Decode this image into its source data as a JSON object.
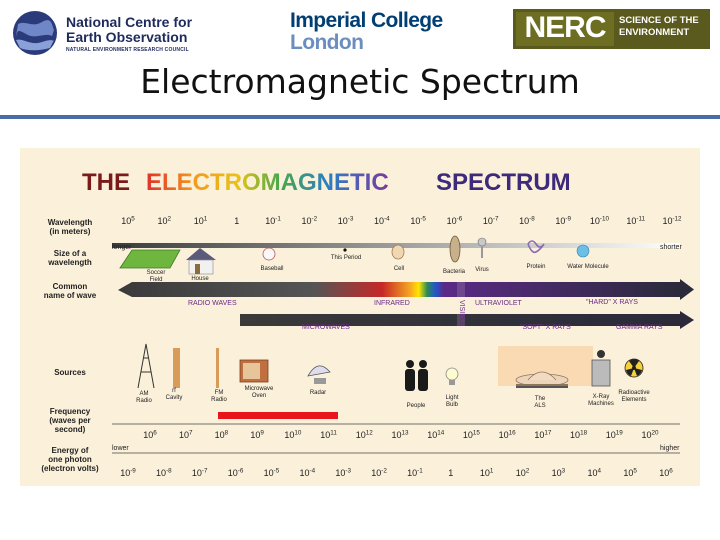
{
  "header": {
    "nceo_line1": "National Centre for",
    "nceo_line2": "Earth Observation",
    "nceo_line3": "NATURAL ENVIRONMENT RESEARCH COUNCIL",
    "imperial_line1": "Imperial College",
    "imperial_line2": "London",
    "nerc_word": "NERC",
    "nerc_tagline": "SCIENCE OF THE ENVIRONMENT",
    "colors": {
      "nceo": "#1f2a5c",
      "imperial_dark": "#003e74",
      "imperial_light": "#6c8ebf",
      "nerc_olive": "#5a5a1e"
    }
  },
  "slide": {
    "title": "Electromagnetic Spectrum",
    "rule_color": "#4a6da7"
  },
  "diagram": {
    "title_the": "THE",
    "title_electromagnetic": "ELECTROMAGNETIC",
    "title_spectrum": "SPECTRUM",
    "row_labels": {
      "wavelength": [
        "Wavelength",
        "(in meters)"
      ],
      "size": [
        "Size of a",
        "wavelength"
      ],
      "common": [
        "Common",
        "name of wave"
      ],
      "sources": [
        "Sources"
      ],
      "frequency": [
        "Frequency",
        "(waves per",
        "second)"
      ],
      "energy": [
        "Energy of",
        "one photon",
        "(electron volts)"
      ]
    },
    "wavelength_ticks": [
      "10^5",
      "10^2",
      "10^1",
      "1",
      "10^-1",
      "10^-2",
      "10^-3",
      "10^-4",
      "10^-5",
      "10^-6",
      "10^-7",
      "10^-8",
      "10^-9",
      "10^-10",
      "10^-11",
      "10^-12"
    ],
    "size_ends": {
      "left": "longer",
      "right": "shorter"
    },
    "size_items": [
      "Soccer Field",
      "House",
      "Baseball",
      "This Period",
      "Cell",
      "Bacteria",
      "Virus",
      "Protein",
      "Water Molecule"
    ],
    "wave_names": {
      "radio": "RADIO WAVES",
      "infrared": "INFRARED",
      "visible": "VISIBLE",
      "ultraviolet": "ULTRAVIOLET",
      "hard_xrays": "\"HARD\" X RAYS",
      "microwaves": "MICROWAVES",
      "soft_xrays": "\"SOFT\" X RAYS",
      "gamma": "GAMMA RAYS"
    },
    "sources": [
      "AM Radio",
      "rf Cavity",
      "FM Radio",
      "Microwave Oven",
      "Radar",
      "People",
      "Light Bulb",
      "The ALS",
      "X-Ray Machines",
      "Radioactive Elements"
    ],
    "frequency_ticks": [
      "10^6",
      "10^7",
      "10^8",
      "10^9",
      "10^10",
      "10^11",
      "10^12",
      "10^13",
      "10^14",
      "10^15",
      "10^16",
      "10^17",
      "10^18",
      "10^19",
      "10^20"
    ],
    "frequency_ends": {
      "left": "lower",
      "right": "higher"
    },
    "energy_ticks": [
      "10^-9",
      "10^-8",
      "10^-7",
      "10^-6",
      "10^-5",
      "10^-4",
      "10^-3",
      "10^-2",
      "10^-1",
      "1",
      "10^1",
      "10^2",
      "10^3",
      "10^4",
      "10^5",
      "10^6"
    ],
    "highlight_color": "#e8161b"
  }
}
